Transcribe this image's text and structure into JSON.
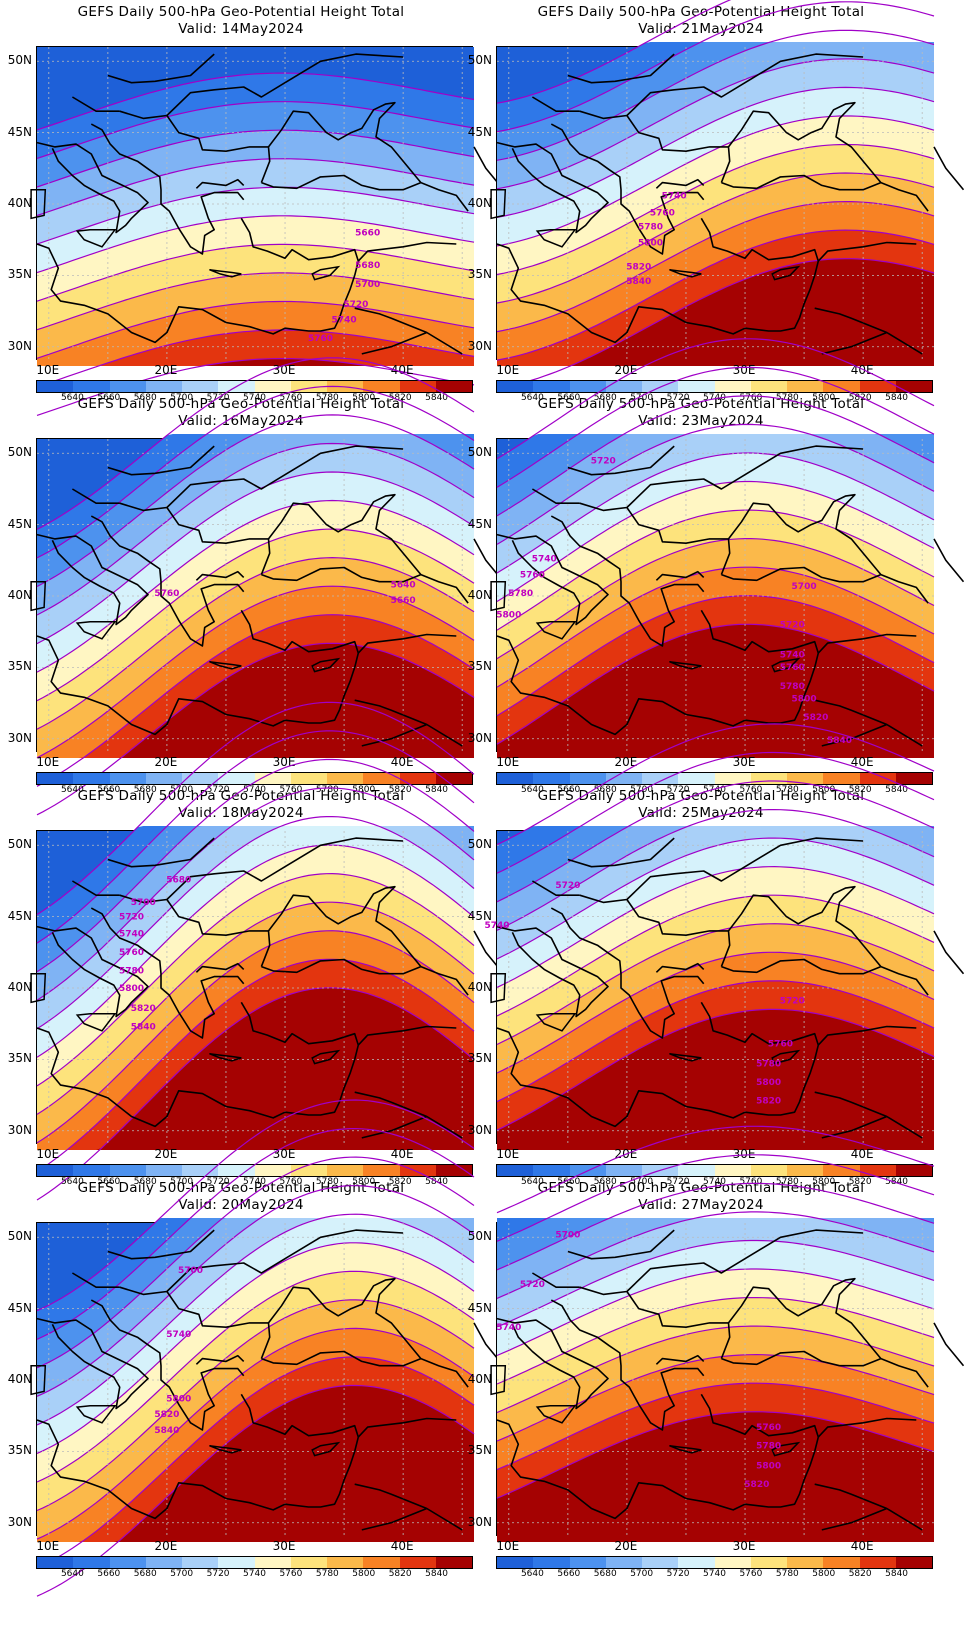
{
  "title": "GEFS Daily 500-hPa Geo-Potential Height Total",
  "colorbar": {
    "labels": [
      "5640",
      "5660",
      "5680",
      "5700",
      "5720",
      "5740",
      "5760",
      "5780",
      "5800",
      "5820",
      "5840"
    ],
    "colors": [
      "#1e60d8",
      "#2f78e8",
      "#4d92ee",
      "#7fb3f4",
      "#a9d0f8",
      "#d6f2fb",
      "#fff6c3",
      "#fde37c",
      "#fbb94a",
      "#f88224",
      "#e3350f",
      "#a50202"
    ]
  },
  "lat_labels": [
    "50N",
    "45N",
    "40N",
    "35N",
    "30N"
  ],
  "lon_labels": [
    "10E",
    "20E",
    "30E",
    "40E"
  ],
  "panels": [
    {
      "valid": "Valid: 14May2024",
      "offset": 0,
      "amp": 20,
      "ridge": 12,
      "contour_labels": [
        {
          "text": "5660",
          "lon": 37,
          "lat": 37.8
        },
        {
          "text": "5680",
          "lon": 37,
          "lat": 35.5
        },
        {
          "text": "5700",
          "lon": 37,
          "lat": 34.2
        },
        {
          "text": "5720",
          "lon": 36,
          "lat": 32.8
        },
        {
          "text": "5740",
          "lon": 35,
          "lat": 31.7
        },
        {
          "text": "5760",
          "lon": 33,
          "lat": 30.4
        }
      ]
    },
    {
      "valid": "Valid: 21May2024",
      "offset": 55,
      "amp": 35,
      "ridge": 22,
      "contour_labels": [
        {
          "text": "5740",
          "lon": 24,
          "lat": 40.4
        },
        {
          "text": "5760",
          "lon": 23,
          "lat": 39.2
        },
        {
          "text": "5780",
          "lon": 22,
          "lat": 38.2
        },
        {
          "text": "5800",
          "lon": 22,
          "lat": 37.1
        },
        {
          "text": "5820",
          "lon": 21,
          "lat": 35.4
        },
        {
          "text": "5840",
          "lon": 21,
          "lat": 34.4
        }
      ]
    },
    {
      "valid": "Valid: 16May2024",
      "offset": 40,
      "amp": 55,
      "ridge": 18,
      "contour_labels": [
        {
          "text": "5760",
          "lon": 20,
          "lat": 40.0
        },
        {
          "text": "5640",
          "lon": 40,
          "lat": 40.6
        },
        {
          "text": "5660",
          "lon": 40,
          "lat": 39.5
        }
      ]
    },
    {
      "valid": "Valid: 23May2024",
      "offset": 70,
      "amp": 45,
      "ridge": 14,
      "contour_labels": [
        {
          "text": "5720",
          "lon": 18,
          "lat": 49.3
        },
        {
          "text": "5700",
          "lon": 35,
          "lat": 40.5
        },
        {
          "text": "5740",
          "lon": 13,
          "lat": 42.4
        },
        {
          "text": "5760",
          "lon": 12,
          "lat": 41.3
        },
        {
          "text": "5780",
          "lon": 11,
          "lat": 40.0
        },
        {
          "text": "5800",
          "lon": 10,
          "lat": 38.5
        },
        {
          "text": "5720",
          "lon": 34,
          "lat": 37.8
        },
        {
          "text": "5740",
          "lon": 34,
          "lat": 35.7
        },
        {
          "text": "5760",
          "lon": 34,
          "lat": 34.8
        },
        {
          "text": "5780",
          "lon": 34,
          "lat": 33.5
        },
        {
          "text": "5800",
          "lon": 35,
          "lat": 32.6
        },
        {
          "text": "5820",
          "lon": 36,
          "lat": 31.3
        },
        {
          "text": "5840",
          "lon": 38,
          "lat": 29.7
        }
      ]
    },
    {
      "valid": "Valid: 18May2024",
      "offset": 60,
      "amp": 70,
      "ridge": 18,
      "contour_labels": [
        {
          "text": "5680",
          "lon": 21,
          "lat": 47.4
        },
        {
          "text": "5700",
          "lon": 18,
          "lat": 45.8
        },
        {
          "text": "5720",
          "lon": 17,
          "lat": 44.8
        },
        {
          "text": "5740",
          "lon": 17,
          "lat": 43.6
        },
        {
          "text": "5760",
          "lon": 17,
          "lat": 42.3
        },
        {
          "text": "5780",
          "lon": 17,
          "lat": 41.0
        },
        {
          "text": "5800",
          "lon": 17,
          "lat": 39.8
        },
        {
          "text": "5820",
          "lon": 18,
          "lat": 38.4
        },
        {
          "text": "5840",
          "lon": 18,
          "lat": 37.1
        }
      ]
    },
    {
      "valid": "Valid: 25May2024",
      "offset": 80,
      "amp": 40,
      "ridge": 16,
      "contour_labels": [
        {
          "text": "5720",
          "lon": 15,
          "lat": 47.0
        },
        {
          "text": "5740",
          "lon": 9,
          "lat": 44.2
        },
        {
          "text": "5720",
          "lon": 34,
          "lat": 38.9
        },
        {
          "text": "5760",
          "lon": 33,
          "lat": 35.9
        },
        {
          "text": "5780",
          "lon": 32,
          "lat": 34.5
        },
        {
          "text": "5800",
          "lon": 32,
          "lat": 33.2
        },
        {
          "text": "5820",
          "lon": 32,
          "lat": 31.9
        }
      ]
    },
    {
      "valid": "Valid: 20May2024",
      "offset": 60,
      "amp": 65,
      "ridge": 20,
      "contour_labels": [
        {
          "text": "5700",
          "lon": 22,
          "lat": 47.5
        },
        {
          "text": "5740",
          "lon": 21,
          "lat": 43.0
        },
        {
          "text": "5800",
          "lon": 21,
          "lat": 38.5
        },
        {
          "text": "5820",
          "lon": 20,
          "lat": 37.4
        },
        {
          "text": "5840",
          "lon": 20,
          "lat": 36.3
        }
      ]
    },
    {
      "valid": "Valid: 27May2024",
      "offset": 85,
      "amp": 30,
      "ridge": 14,
      "contour_labels": [
        {
          "text": "5700",
          "lon": 15,
          "lat": 50.0
        },
        {
          "text": "5720",
          "lon": 12,
          "lat": 46.5
        },
        {
          "text": "5740",
          "lon": 10,
          "lat": 43.5
        },
        {
          "text": "5760",
          "lon": 32,
          "lat": 36.5
        },
        {
          "text": "5780",
          "lon": 32,
          "lat": 35.2
        },
        {
          "text": "5800",
          "lon": 32,
          "lat": 33.8
        },
        {
          "text": "5820",
          "lon": 31,
          "lat": 32.5
        }
      ]
    }
  ]
}
